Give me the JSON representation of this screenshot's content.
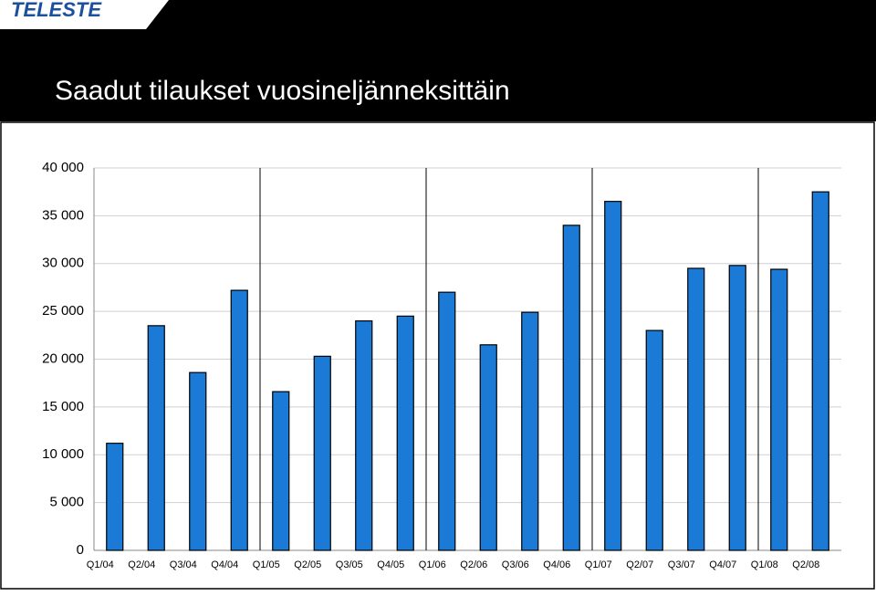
{
  "logo": "TELESTE",
  "chart_data": {
    "type": "bar",
    "title": "Saadut tilaukset vuosineljänneksittäin",
    "categories": [
      "Q1/04",
      "Q2/04",
      "Q3/04",
      "Q4/04",
      "Q1/05",
      "Q2/05",
      "Q3/05",
      "Q4/05",
      "Q1/06",
      "Q2/06",
      "Q3/06",
      "Q4/06",
      "Q1/07",
      "Q2/07",
      "Q3/07",
      "Q4/07",
      "Q1/08",
      "Q2/08"
    ],
    "values": [
      11200,
      23500,
      18600,
      27200,
      16600,
      20300,
      24000,
      24500,
      27000,
      21500,
      24900,
      34000,
      36500,
      23000,
      29500,
      29800,
      29400,
      37500
    ],
    "color": "#1a7ad6",
    "ylim": [
      0,
      40000
    ],
    "yticks": [
      0,
      {
        "value": 5000,
        "label": "5 000"
      },
      {
        "value": 10000,
        "label": "10 000"
      },
      {
        "value": 15000,
        "label": "15 000"
      },
      {
        "value": 20000,
        "label": "20 000"
      },
      {
        "value": 25000,
        "label": "25 000"
      },
      {
        "value": 30000,
        "label": "30 000"
      },
      {
        "value": 35000,
        "label": "35 000"
      },
      {
        "value": 40000,
        "label": "40 000"
      }
    ],
    "grid": true
  }
}
